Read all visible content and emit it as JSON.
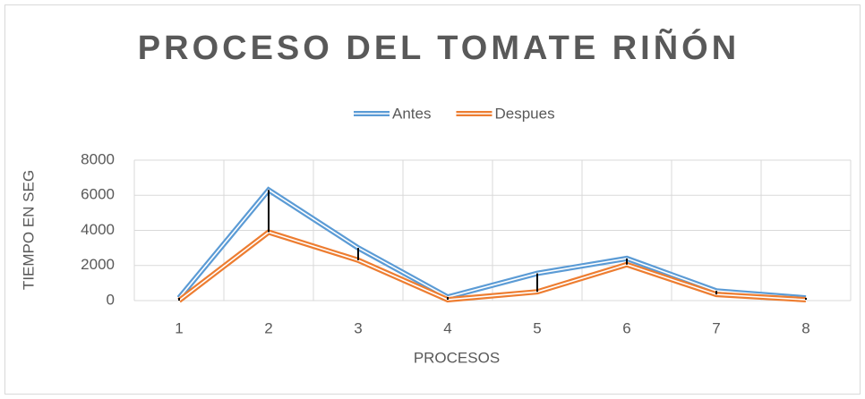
{
  "chart_data": {
    "type": "line",
    "title": "PROCESO DEL TOMATE RIÑÓN",
    "x_label": "PROCESOS",
    "y_label": "TIEMPO EN SEG",
    "categories": [
      "1",
      "2",
      "3",
      "4",
      "5",
      "6",
      "7",
      "8"
    ],
    "series": [
      {
        "name": "Antes",
        "color": "#5b9bd5",
        "values": [
          150,
          6300,
          3000,
          200,
          1550,
          2400,
          550,
          150
        ]
      },
      {
        "name": "Despues",
        "color": "#ed7d31",
        "values": [
          0,
          3900,
          2300,
          50,
          500,
          2050,
          350,
          50
        ]
      }
    ],
    "ylim": [
      0,
      8000
    ],
    "yticks": [
      0,
      2000,
      4000,
      6000,
      8000
    ],
    "grid": true,
    "legend": "top",
    "high_low_lines": true
  }
}
